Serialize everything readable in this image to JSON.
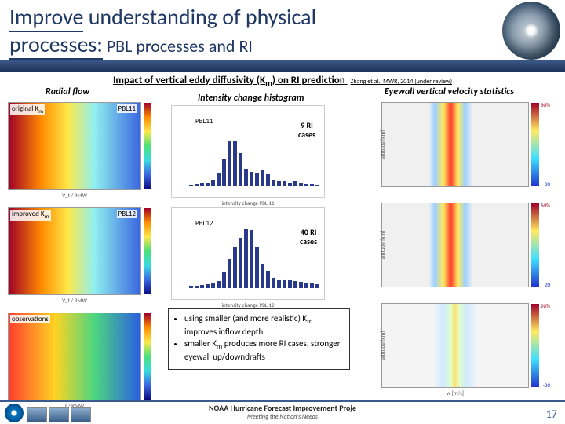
{
  "title": {
    "line1_underlined": "Improve",
    "line1_rest": " understanding of physical",
    "line2_underlined": "processes:",
    "line2_sub": " PBL processes and RI"
  },
  "section_title": "Impact of vertical eddy diffusivity (K",
  "section_title_sub": "m",
  "section_title_end": ") on RI prediction",
  "citation": "Zhang et al., MWR, 2014 (under review)",
  "columns": {
    "left": "Radial flow",
    "middle": "Intensity change histogram",
    "right": "Eyewall vertical velocity statistics"
  },
  "radial": {
    "panels": [
      {
        "tag_left": "original K",
        "tag_left_sub": "m",
        "tag_right": "PBL11",
        "xlabel": "V_t / RMW"
      },
      {
        "tag_left": "improved K",
        "tag_left_sub": "m",
        "tag_right": "PBL12",
        "xlabel": "V_t / RMW"
      },
      {
        "tag_left": "observations",
        "tag_left_sub": "",
        "tag_right": "",
        "xlabel": "r / RMW"
      }
    ]
  },
  "hist": {
    "panel1": {
      "tag": "PBL11",
      "xlabel": "intensity change PBL 11",
      "bars": [
        0.02,
        0.03,
        0.04,
        0.04,
        0.09,
        0.18,
        0.38,
        0.62,
        0.62,
        0.46,
        0.24,
        0.2,
        0.19,
        0.23,
        0.16,
        0.09,
        0.06,
        0.06,
        0.04,
        0.06,
        0.04,
        0.03,
        0.03,
        0.02
      ],
      "ri_label_top": "9 RI",
      "ri_label_bottom": "cases"
    },
    "panel2": {
      "tag": "PBL12",
      "xlabel": "intensity change PBL 12",
      "bars": [
        0.03,
        0.03,
        0.04,
        0.05,
        0.07,
        0.1,
        0.22,
        0.4,
        0.56,
        0.7,
        0.82,
        0.8,
        0.58,
        0.34,
        0.24,
        0.14,
        0.11,
        0.12,
        0.11,
        0.1,
        0.09,
        0.07,
        0.06,
        0.05
      ],
      "ri_label_top": "40 RI",
      "ri_label_bottom": "cases"
    }
  },
  "eyewall": {
    "ylabel": "altitude [km]",
    "xlabel": "w [m/s]",
    "scales": [
      {
        "top": "60%",
        "bot": "20"
      },
      {
        "top": "60%",
        "bot": "20"
      },
      {
        "top": "20%",
        "bot": "-20"
      }
    ]
  },
  "bullets": [
    "using smaller (and more realistic) K<sub>m</sub> improves inflow depth",
    "smaller K<sub>m</sub> produces more RI cases, stronger eyewall up/downdrafts"
  ],
  "footer": {
    "title": "NOAA Hurricane Forecast Improvement Proje",
    "subtitle": "Meeting the Nation's Needs",
    "page": "17"
  }
}
